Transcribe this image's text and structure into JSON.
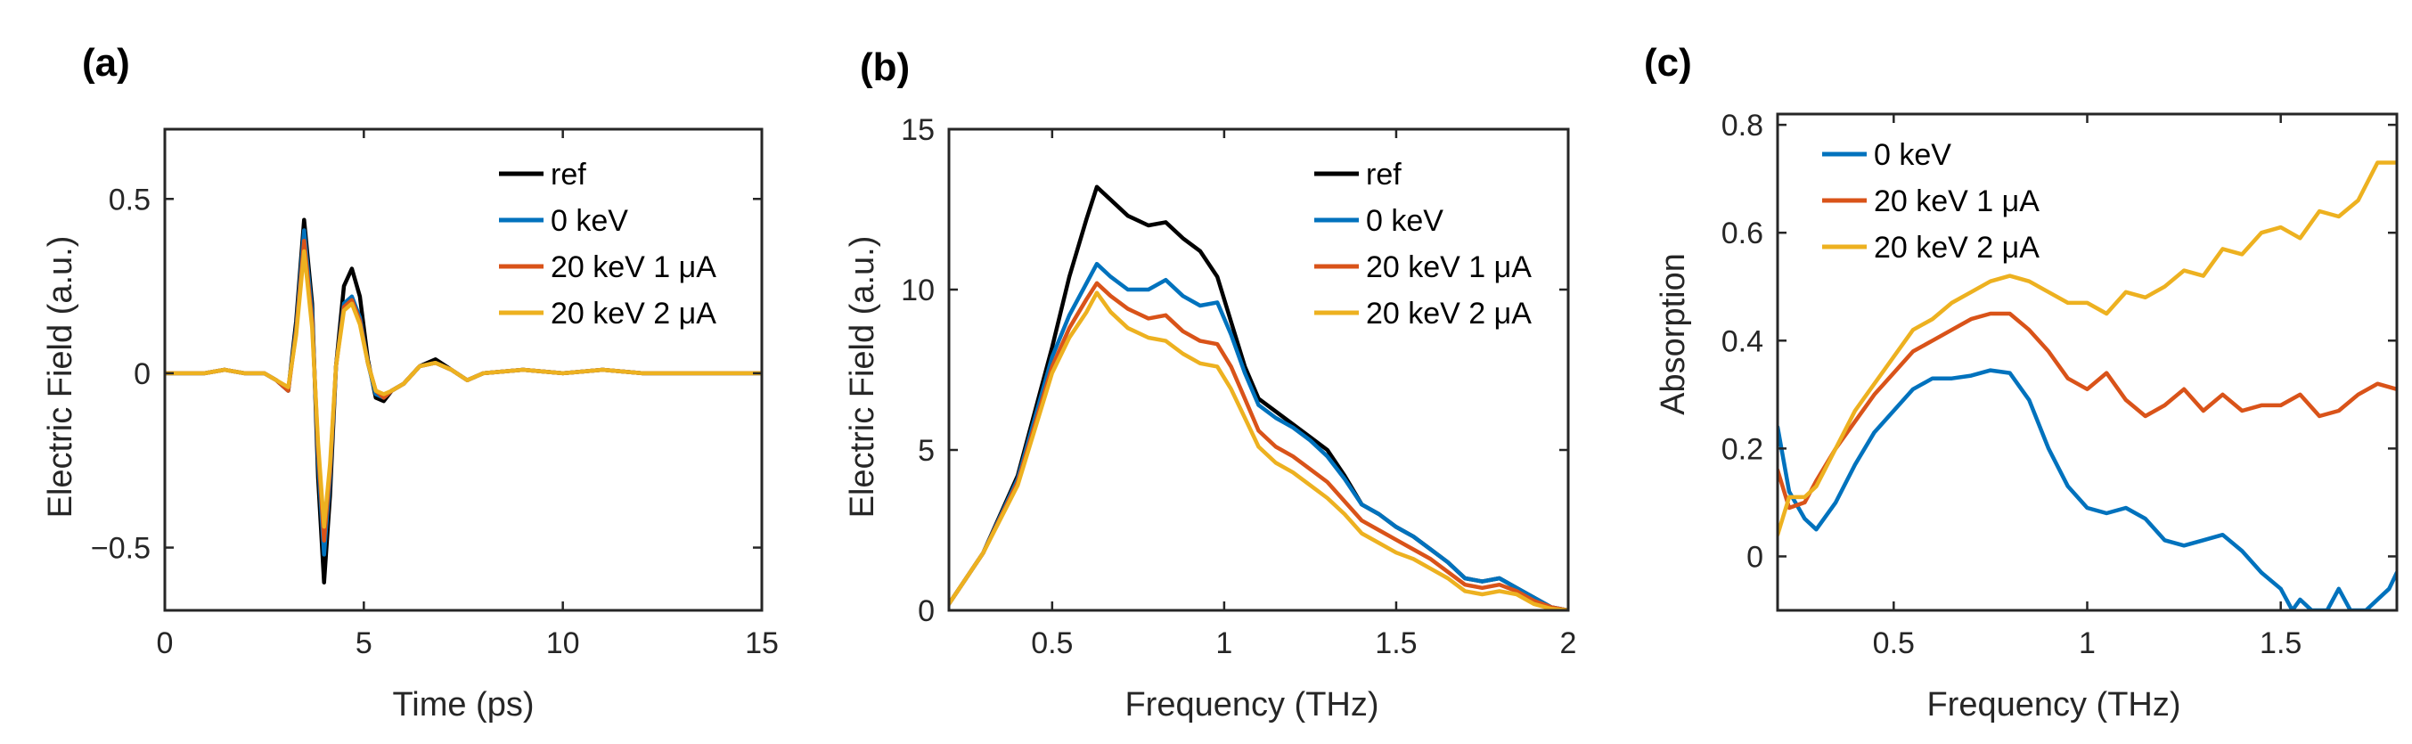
{
  "colors": {
    "ref": "#000000",
    "zero": "#0072BD",
    "one": "#D95319",
    "two": "#EDB120"
  },
  "chart_data": [
    {
      "panel": "(a)",
      "type": "line",
      "xlabel": "Time (ps)",
      "ylabel": "Electric Field (a.u.)",
      "xlim": [
        0,
        15
      ],
      "ylim": [
        -0.68,
        0.7
      ],
      "xticks": [
        0,
        5,
        10,
        15
      ],
      "xtick_labels": [
        "0",
        "5",
        "10",
        "15"
      ],
      "yticks": [
        -0.5,
        0,
        0.5
      ],
      "ytick_labels": [
        "−0.5",
        "0",
        "0.5"
      ],
      "legend_position": "top-right",
      "series": [
        {
          "name": "ref",
          "color": "#000000",
          "x": [
            0,
            0.5,
            1,
            1.5,
            2,
            2.5,
            2.8,
            3.1,
            3.3,
            3.5,
            3.7,
            3.85,
            4.0,
            4.15,
            4.3,
            4.5,
            4.7,
            4.9,
            5.1,
            5.3,
            5.5,
            5.7,
            6.0,
            6.4,
            6.8,
            7.2,
            7.6,
            8,
            9,
            10,
            11,
            12,
            13,
            14,
            15
          ],
          "y": [
            0,
            0,
            0,
            0.01,
            0,
            0,
            -0.02,
            -0.05,
            0.15,
            0.44,
            0.2,
            -0.3,
            -0.6,
            -0.35,
            0.02,
            0.25,
            0.3,
            0.22,
            0.04,
            -0.07,
            -0.08,
            -0.05,
            -0.03,
            0.02,
            0.04,
            0.01,
            -0.02,
            0,
            0.01,
            0,
            0.01,
            0,
            0,
            0,
            0
          ]
        },
        {
          "name": "0 keV",
          "color": "#0072BD",
          "x": [
            0,
            0.5,
            1,
            1.5,
            2,
            2.5,
            2.8,
            3.1,
            3.3,
            3.5,
            3.7,
            3.85,
            4.0,
            4.15,
            4.3,
            4.5,
            4.7,
            4.9,
            5.1,
            5.3,
            5.5,
            5.7,
            6.0,
            6.4,
            6.8,
            7.2,
            7.6,
            8,
            9,
            10,
            11,
            12,
            13,
            14,
            15
          ],
          "y": [
            0,
            0,
            0,
            0.01,
            0,
            0,
            -0.02,
            -0.05,
            0.13,
            0.41,
            0.17,
            -0.25,
            -0.52,
            -0.3,
            0.02,
            0.2,
            0.22,
            0.16,
            0.03,
            -0.06,
            -0.07,
            -0.05,
            -0.03,
            0.02,
            0.03,
            0.01,
            -0.02,
            0,
            0.01,
            0,
            0.01,
            0,
            0,
            0,
            0
          ]
        },
        {
          "name": "20 keV 1 μA",
          "color": "#D95319",
          "x": [
            0,
            0.5,
            1,
            1.5,
            2,
            2.5,
            2.8,
            3.1,
            3.3,
            3.5,
            3.7,
            3.85,
            4.0,
            4.15,
            4.3,
            4.5,
            4.7,
            4.9,
            5.1,
            5.3,
            5.5,
            5.7,
            6.0,
            6.4,
            6.8,
            7.2,
            7.6,
            8,
            9,
            10,
            11,
            12,
            13,
            14,
            15
          ],
          "y": [
            0,
            0,
            0,
            0.01,
            0,
            0,
            -0.02,
            -0.05,
            0.12,
            0.38,
            0.15,
            -0.22,
            -0.48,
            -0.28,
            0.02,
            0.19,
            0.21,
            0.15,
            0.03,
            -0.05,
            -0.07,
            -0.05,
            -0.03,
            0.02,
            0.03,
            0.01,
            -0.02,
            0,
            0.01,
            0,
            0.01,
            0,
            0,
            0,
            0
          ]
        },
        {
          "name": "20 keV 2 μA",
          "color": "#EDB120",
          "x": [
            0,
            0.5,
            1,
            1.5,
            2,
            2.5,
            2.8,
            3.1,
            3.3,
            3.5,
            3.7,
            3.85,
            4.0,
            4.15,
            4.3,
            4.5,
            4.7,
            4.9,
            5.1,
            5.3,
            5.5,
            5.7,
            6.0,
            6.4,
            6.8,
            7.2,
            7.6,
            8,
            9,
            10,
            11,
            12,
            13,
            14,
            15
          ],
          "y": [
            0,
            0,
            0,
            0.01,
            0,
            0,
            -0.02,
            -0.04,
            0.11,
            0.35,
            0.13,
            -0.2,
            -0.44,
            -0.26,
            0.02,
            0.18,
            0.2,
            0.14,
            0.03,
            -0.05,
            -0.06,
            -0.05,
            -0.03,
            0.02,
            0.03,
            0.01,
            -0.02,
            0,
            0.01,
            0,
            0.01,
            0,
            0,
            0,
            0
          ]
        }
      ]
    },
    {
      "panel": "(b)",
      "type": "line",
      "xlabel": "Frequency (THz)",
      "ylabel": "Electric Field (a.u.)",
      "xlim": [
        0.2,
        2
      ],
      "ylim": [
        0,
        15
      ],
      "xticks": [
        0.5,
        1,
        1.5,
        2
      ],
      "xtick_labels": [
        "0.5",
        "1",
        "1.5",
        "2"
      ],
      "yticks": [
        0,
        5,
        10,
        15
      ],
      "ytick_labels": [
        "0",
        "5",
        "10",
        "15"
      ],
      "legend_position": "top-right",
      "series": [
        {
          "name": "ref",
          "color": "#000000",
          "x": [
            0.2,
            0.3,
            0.4,
            0.5,
            0.55,
            0.6,
            0.63,
            0.67,
            0.72,
            0.78,
            0.83,
            0.88,
            0.93,
            0.98,
            1.02,
            1.06,
            1.1,
            1.15,
            1.2,
            1.25,
            1.3,
            1.35,
            1.4,
            1.45,
            1.5,
            1.55,
            1.6,
            1.65,
            1.7,
            1.75,
            1.8,
            1.85,
            1.9,
            1.95,
            2.0
          ],
          "y": [
            0.2,
            1.8,
            4.2,
            8.2,
            10.4,
            12.2,
            13.2,
            12.8,
            12.3,
            12,
            12.1,
            11.6,
            11.2,
            10.4,
            9,
            7.6,
            6.6,
            6.2,
            5.8,
            5.4,
            5,
            4.2,
            3.3,
            3,
            2.6,
            2.3,
            1.9,
            1.5,
            1,
            0.9,
            1,
            0.7,
            0.4,
            0.1,
            0
          ]
        },
        {
          "name": "0 keV",
          "color": "#0072BD",
          "x": [
            0.2,
            0.3,
            0.4,
            0.5,
            0.55,
            0.6,
            0.63,
            0.67,
            0.72,
            0.78,
            0.83,
            0.88,
            0.93,
            0.98,
            1.02,
            1.06,
            1.1,
            1.15,
            1.2,
            1.25,
            1.3,
            1.35,
            1.4,
            1.45,
            1.5,
            1.55,
            1.6,
            1.65,
            1.7,
            1.75,
            1.8,
            1.85,
            1.9,
            1.95,
            2.0
          ],
          "y": [
            0.2,
            1.8,
            4.1,
            7.9,
            9.2,
            10.2,
            10.8,
            10.4,
            10,
            10,
            10.3,
            9.8,
            9.5,
            9.6,
            8.6,
            7.4,
            6.4,
            6,
            5.7,
            5.3,
            4.8,
            4.1,
            3.3,
            3,
            2.6,
            2.3,
            1.9,
            1.5,
            1,
            0.9,
            1,
            0.7,
            0.4,
            0.1,
            0
          ]
        },
        {
          "name": "20 keV 1 μA",
          "color": "#D95319",
          "x": [
            0.2,
            0.3,
            0.4,
            0.5,
            0.55,
            0.6,
            0.63,
            0.67,
            0.72,
            0.78,
            0.83,
            0.88,
            0.93,
            0.98,
            1.02,
            1.06,
            1.1,
            1.15,
            1.2,
            1.25,
            1.3,
            1.35,
            1.4,
            1.45,
            1.5,
            1.55,
            1.6,
            1.65,
            1.7,
            1.75,
            1.8,
            1.85,
            1.9,
            1.95,
            2.0
          ],
          "y": [
            0.2,
            1.8,
            4,
            7.6,
            8.8,
            9.7,
            10.2,
            9.8,
            9.4,
            9.1,
            9.2,
            8.7,
            8.4,
            8.3,
            7.6,
            6.6,
            5.6,
            5.1,
            4.8,
            4.4,
            4,
            3.4,
            2.8,
            2.5,
            2.2,
            1.9,
            1.6,
            1.2,
            0.8,
            0.7,
            0.8,
            0.6,
            0.3,
            0.1,
            0
          ]
        },
        {
          "name": "20 keV 2 μA",
          "color": "#EDB120",
          "x": [
            0.2,
            0.3,
            0.4,
            0.5,
            0.55,
            0.6,
            0.63,
            0.67,
            0.72,
            0.78,
            0.83,
            0.88,
            0.93,
            0.98,
            1.02,
            1.06,
            1.1,
            1.15,
            1.2,
            1.25,
            1.3,
            1.35,
            1.4,
            1.45,
            1.5,
            1.55,
            1.6,
            1.65,
            1.7,
            1.75,
            1.8,
            1.85,
            1.9,
            1.95,
            2.0
          ],
          "y": [
            0.2,
            1.8,
            3.9,
            7.4,
            8.5,
            9.3,
            9.9,
            9.3,
            8.8,
            8.5,
            8.4,
            8,
            7.7,
            7.6,
            6.9,
            6,
            5.1,
            4.6,
            4.3,
            3.9,
            3.5,
            3,
            2.4,
            2.1,
            1.8,
            1.6,
            1.3,
            1,
            0.6,
            0.5,
            0.6,
            0.5,
            0.2,
            0.05,
            0
          ]
        }
      ]
    },
    {
      "panel": "(c)",
      "type": "line",
      "xlabel": "Frequency (THz)",
      "ylabel": "Absorption",
      "xlim": [
        0.2,
        1.8
      ],
      "ylim": [
        -0.1,
        0.82
      ],
      "xticks": [
        0.5,
        1,
        1.5
      ],
      "xtick_labels": [
        "0.5",
        "1",
        "1.5"
      ],
      "yticks": [
        0,
        0.2,
        0.4,
        0.6,
        0.8
      ],
      "ytick_labels": [
        "0",
        "0.2",
        "0.4",
        "0.6",
        "0.8"
      ],
      "legend_position": "top-left",
      "series": [
        {
          "name": "0 keV",
          "color": "#0072BD",
          "x": [
            0.2,
            0.23,
            0.27,
            0.3,
            0.35,
            0.4,
            0.45,
            0.5,
            0.55,
            0.6,
            0.65,
            0.7,
            0.75,
            0.8,
            0.85,
            0.9,
            0.95,
            1.0,
            1.05,
            1.1,
            1.15,
            1.2,
            1.25,
            1.3,
            1.35,
            1.4,
            1.45,
            1.5,
            1.53,
            1.55,
            1.58,
            1.62,
            1.65,
            1.68,
            1.72,
            1.75,
            1.78,
            1.8
          ],
          "y": [
            0.24,
            0.12,
            0.07,
            0.05,
            0.1,
            0.17,
            0.23,
            0.27,
            0.31,
            0.33,
            0.33,
            0.335,
            0.345,
            0.34,
            0.29,
            0.2,
            0.13,
            0.09,
            0.08,
            0.09,
            0.07,
            0.03,
            0.02,
            0.03,
            0.04,
            0.01,
            -0.03,
            -0.06,
            -0.1,
            -0.08,
            -0.1,
            -0.1,
            -0.06,
            -0.1,
            -0.1,
            -0.08,
            -0.06,
            -0.03
          ]
        },
        {
          "name": "20 keV 1 μA",
          "color": "#D95319",
          "x": [
            0.2,
            0.23,
            0.27,
            0.3,
            0.35,
            0.4,
            0.45,
            0.5,
            0.55,
            0.6,
            0.65,
            0.7,
            0.75,
            0.8,
            0.85,
            0.9,
            0.95,
            1.0,
            1.05,
            1.1,
            1.15,
            1.2,
            1.25,
            1.3,
            1.35,
            1.4,
            1.45,
            1.5,
            1.55,
            1.6,
            1.65,
            1.7,
            1.75,
            1.8
          ],
          "y": [
            0.16,
            0.09,
            0.1,
            0.14,
            0.2,
            0.25,
            0.3,
            0.34,
            0.38,
            0.4,
            0.42,
            0.44,
            0.45,
            0.45,
            0.42,
            0.38,
            0.33,
            0.31,
            0.34,
            0.29,
            0.26,
            0.28,
            0.31,
            0.27,
            0.3,
            0.27,
            0.28,
            0.28,
            0.3,
            0.26,
            0.27,
            0.3,
            0.32,
            0.31
          ]
        },
        {
          "name": "20 keV 2 μA",
          "color": "#EDB120",
          "x": [
            0.2,
            0.23,
            0.27,
            0.3,
            0.35,
            0.4,
            0.45,
            0.5,
            0.55,
            0.6,
            0.65,
            0.7,
            0.75,
            0.8,
            0.85,
            0.9,
            0.95,
            1.0,
            1.05,
            1.1,
            1.15,
            1.2,
            1.25,
            1.3,
            1.35,
            1.4,
            1.45,
            1.5,
            1.55,
            1.6,
            1.65,
            1.7,
            1.75,
            1.8
          ],
          "y": [
            0.04,
            0.11,
            0.11,
            0.13,
            0.2,
            0.27,
            0.32,
            0.37,
            0.42,
            0.44,
            0.47,
            0.49,
            0.51,
            0.52,
            0.51,
            0.49,
            0.47,
            0.47,
            0.45,
            0.49,
            0.48,
            0.5,
            0.53,
            0.52,
            0.57,
            0.56,
            0.6,
            0.61,
            0.59,
            0.64,
            0.63,
            0.66,
            0.73,
            0.73
          ]
        }
      ]
    }
  ]
}
